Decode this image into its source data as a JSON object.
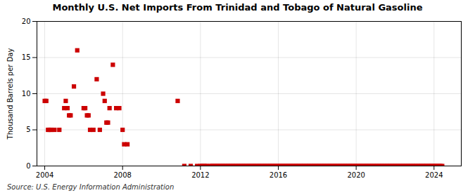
{
  "chart_data": {
    "type": "scatter",
    "title": "Monthly U.S. Net Imports From Trinidad and Tobago of Natural Gasoline",
    "ylabel": "Thousand Barrels per Day",
    "source": "Source: U.S. Energy Information Administration",
    "color": "#cc0000",
    "marker": "square",
    "grid": true,
    "xlim": [
      2003.6,
      2025.4
    ],
    "ylim": [
      0,
      20
    ],
    "xticks": [
      2004,
      2008,
      2012,
      2016,
      2020,
      2024
    ],
    "yticks": [
      0,
      5,
      10,
      15,
      20
    ],
    "x": [
      2004.0,
      2004.08,
      2004.17,
      2004.25,
      2004.33,
      2004.5,
      2004.75,
      2005.0,
      2005.08,
      2005.17,
      2005.25,
      2005.33,
      2005.5,
      2005.67,
      2006.0,
      2006.08,
      2006.17,
      2006.25,
      2006.33,
      2006.5,
      2006.67,
      2006.83,
      2007.0,
      2007.08,
      2007.17,
      2007.25,
      2007.33,
      2007.5,
      2007.67,
      2007.83,
      2008.0,
      2008.08,
      2008.25,
      2010.83,
      2011.17,
      2011.5,
      2011.83,
      2012.0,
      2012.08,
      2012.17,
      2012.25,
      2012.33,
      2012.5,
      2012.58,
      2012.67,
      2012.75,
      2012.83,
      2012.92,
      2013.0,
      2013.08,
      2013.17,
      2013.25,
      2013.33,
      2013.42,
      2013.5,
      2013.58,
      2013.67,
      2013.75,
      2013.83,
      2013.92,
      2014.0,
      2014.08,
      2014.17,
      2014.25,
      2014.33,
      2014.42,
      2014.5,
      2014.58,
      2014.67,
      2014.75,
      2014.83,
      2014.92,
      2015.0,
      2015.08,
      2015.17,
      2015.25,
      2015.33,
      2015.42,
      2015.5,
      2015.58,
      2015.67,
      2015.75,
      2015.83,
      2015.92,
      2016.0,
      2016.08,
      2016.17,
      2016.25,
      2016.33,
      2016.42,
      2016.5,
      2016.58,
      2016.67,
      2016.75,
      2016.83,
      2016.92,
      2017.0,
      2017.08,
      2017.17,
      2017.25,
      2017.33,
      2017.42,
      2017.5,
      2017.58,
      2017.67,
      2017.75,
      2017.83,
      2017.92,
      2018.0,
      2018.08,
      2018.17,
      2018.25,
      2018.33,
      2018.42,
      2018.5,
      2018.58,
      2018.67,
      2018.75,
      2018.83,
      2018.92,
      2019.0,
      2019.08,
      2019.17,
      2019.25,
      2019.33,
      2019.42,
      2019.5,
      2019.58,
      2019.67,
      2019.75,
      2019.83,
      2019.92,
      2020.0,
      2020.08,
      2020.17,
      2020.25,
      2020.33,
      2020.42,
      2020.5,
      2020.58,
      2020.67,
      2020.75,
      2020.83,
      2020.92,
      2021.0,
      2021.08,
      2021.17,
      2021.25,
      2021.33,
      2021.42,
      2021.5,
      2021.58,
      2021.67,
      2021.75,
      2021.83,
      2021.92,
      2022.0,
      2022.08,
      2022.17,
      2022.25,
      2022.33,
      2022.42,
      2022.5,
      2022.58,
      2022.67,
      2022.75,
      2022.83,
      2022.92,
      2023.0,
      2023.08,
      2023.17,
      2023.25,
      2023.33,
      2023.42,
      2023.5,
      2023.58,
      2023.67,
      2023.75,
      2023.83,
      2023.92,
      2024.0,
      2024.08,
      2024.17,
      2024.25,
      2024.33,
      2024.42
    ],
    "values": [
      9,
      9,
      5,
      5,
      5,
      5,
      5,
      8,
      9,
      8,
      7,
      7,
      11,
      16,
      8,
      8,
      7,
      7,
      5,
      5,
      12,
      5,
      10,
      9,
      6,
      6,
      8,
      14,
      8,
      8,
      5,
      3,
      3,
      9,
      0,
      0,
      0,
      0,
      0,
      0,
      0,
      0,
      0,
      0,
      0,
      0,
      0,
      0,
      0,
      0,
      0,
      0,
      0,
      0,
      0,
      0,
      0,
      0,
      0,
      0,
      0,
      0,
      0,
      0,
      0,
      0,
      0,
      0,
      0,
      0,
      0,
      0,
      0,
      0,
      0,
      0,
      0,
      0,
      0,
      0,
      0,
      0,
      0,
      0,
      0,
      0,
      0,
      0,
      0,
      0,
      0,
      0,
      0,
      0,
      0,
      0,
      0,
      0,
      0,
      0,
      0,
      0,
      0,
      0,
      0,
      0,
      0,
      0,
      0,
      0,
      0,
      0,
      0,
      0,
      0,
      0,
      0,
      0,
      0,
      0,
      0,
      0,
      0,
      0,
      0,
      0,
      0,
      0,
      0,
      0,
      0,
      0,
      0,
      0,
      0,
      0,
      0,
      0,
      0,
      0,
      0,
      0,
      0,
      0,
      0,
      0,
      0,
      0,
      0,
      0,
      0,
      0,
      0,
      0,
      0,
      0,
      0,
      0,
      0,
      0,
      0,
      0,
      0,
      0,
      0,
      0,
      0,
      0,
      0,
      0,
      0,
      0,
      0,
      0,
      0,
      0,
      0,
      0,
      0,
      0,
      0,
      0,
      0,
      0,
      0,
      0
    ]
  }
}
